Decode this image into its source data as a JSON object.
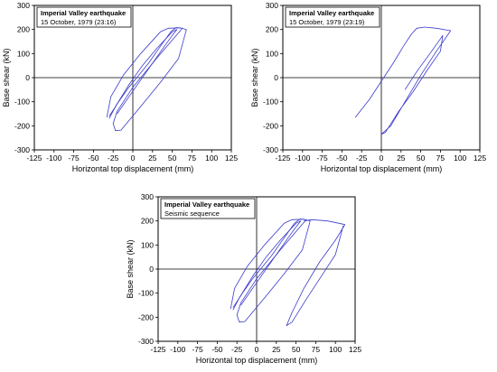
{
  "colors": {
    "curve": "#3a3acc",
    "axis": "#000000",
    "background": "#ffffff"
  },
  "chart_data": [
    {
      "type": "line",
      "annotation_title": "Imperial Valley earthquake",
      "annotation_subtitle": "15 October, 1979 (23:16)",
      "xlabel": "Horizontal top displacement (mm)",
      "ylabel": "Base shear (kN)",
      "xlim": [
        -125,
        125
      ],
      "ylim": [
        -300,
        300
      ],
      "xticks": [
        -125,
        -100,
        -75,
        -50,
        -25,
        0,
        25,
        50,
        75,
        100,
        125
      ],
      "yticks": [
        -300,
        -200,
        -100,
        0,
        100,
        200,
        300
      ],
      "series": [
        {
          "points": [
            [
              -30,
              -160
            ],
            [
              -18,
              -100
            ],
            [
              -5,
              -40
            ],
            [
              5,
              0
            ],
            [
              20,
              60
            ],
            [
              35,
              130
            ],
            [
              48,
              190
            ],
            [
              55,
              208
            ],
            [
              63,
              205
            ],
            [
              30,
              80
            ],
            [
              0,
              -40
            ],
            [
              -20,
              -140
            ],
            [
              -25,
              -190
            ],
            [
              -22,
              -220
            ],
            [
              -15,
              -218
            ],
            [
              10,
              -120
            ],
            [
              35,
              -20
            ],
            [
              58,
              80
            ],
            [
              68,
              200
            ],
            [
              60,
              207
            ],
            [
              45,
              205
            ],
            [
              35,
              190
            ],
            [
              10,
              100
            ],
            [
              -12,
              10
            ],
            [
              -28,
              -80
            ],
            [
              -33,
              -165
            ]
          ]
        },
        {
          "points": [
            [
              -20,
              -150
            ],
            [
              -5,
              -80
            ],
            [
              10,
              -10
            ],
            [
              25,
              60
            ],
            [
              40,
              130
            ],
            [
              50,
              175
            ],
            [
              56,
              200
            ],
            [
              50,
              190
            ],
            [
              30,
              120
            ],
            [
              12,
              50
            ],
            [
              -5,
              -30
            ],
            [
              -22,
              -120
            ],
            [
              -30,
              -170
            ]
          ]
        }
      ]
    },
    {
      "type": "line",
      "annotation_title": "Imperial Valley earthquake",
      "annotation_subtitle": "15 October, 1979 (23:19)",
      "xlabel": "Horizontal top displacement (mm)",
      "ylabel": "Base shear (kN)",
      "xlim": [
        -125,
        125
      ],
      "ylim": [
        -300,
        300
      ],
      "xticks": [
        -125,
        -100,
        -75,
        -50,
        -25,
        0,
        25,
        50,
        75,
        100,
        125
      ],
      "yticks": [
        -300,
        -200,
        -100,
        0,
        100,
        200,
        300
      ],
      "series": [
        {
          "points": [
            [
              -33,
              -165
            ],
            [
              -15,
              -90
            ],
            [
              0,
              -15
            ],
            [
              15,
              60
            ],
            [
              28,
              130
            ],
            [
              38,
              180
            ],
            [
              45,
              205
            ],
            [
              55,
              210
            ],
            [
              70,
              205
            ],
            [
              88,
              195
            ],
            [
              70,
              110
            ],
            [
              50,
              10
            ],
            [
              30,
              -100
            ],
            [
              12,
              -200
            ],
            [
              0,
              -235
            ],
            [
              5,
              -228
            ],
            [
              22,
              -140
            ],
            [
              40,
              -60
            ],
            [
              58,
              30
            ],
            [
              75,
              110
            ],
            [
              78,
              175
            ],
            [
              65,
              115
            ],
            [
              45,
              25
            ],
            [
              30,
              -50
            ]
          ]
        }
      ]
    },
    {
      "type": "line",
      "annotation_title": "Imperial Valley earthquake",
      "annotation_subtitle": "Seismic sequence",
      "xlabel": "Horizontal top displacement (mm)",
      "ylabel": "Base shear (kN)",
      "xlim": [
        -125,
        125
      ],
      "ylim": [
        -300,
        300
      ],
      "xticks": [
        -125,
        -100,
        -75,
        -50,
        -25,
        0,
        25,
        50,
        75,
        100,
        125
      ],
      "yticks": [
        -300,
        -200,
        -100,
        0,
        100,
        200,
        300
      ],
      "series": [
        {
          "points": [
            [
              -30,
              -160
            ],
            [
              -18,
              -100
            ],
            [
              -5,
              -40
            ],
            [
              5,
              0
            ],
            [
              20,
              60
            ],
            [
              35,
              130
            ],
            [
              48,
              190
            ],
            [
              55,
              208
            ],
            [
              63,
              205
            ],
            [
              30,
              80
            ],
            [
              0,
              -40
            ],
            [
              -20,
              -140
            ],
            [
              -25,
              -190
            ],
            [
              -22,
              -220
            ],
            [
              -15,
              -218
            ],
            [
              10,
              -120
            ],
            [
              35,
              -20
            ],
            [
              58,
              80
            ],
            [
              68,
              200
            ],
            [
              60,
              207
            ],
            [
              45,
              205
            ],
            [
              35,
              190
            ],
            [
              10,
              100
            ],
            [
              -12,
              10
            ],
            [
              -28,
              -80
            ],
            [
              -33,
              -165
            ]
          ]
        },
        {
          "points": [
            [
              -20,
              -150
            ],
            [
              -5,
              -80
            ],
            [
              10,
              -10
            ],
            [
              25,
              60
            ],
            [
              40,
              130
            ],
            [
              50,
              175
            ],
            [
              56,
              200
            ],
            [
              50,
              190
            ],
            [
              30,
              120
            ],
            [
              12,
              50
            ],
            [
              -5,
              -30
            ],
            [
              -22,
              -120
            ],
            [
              -30,
              -170
            ]
          ]
        },
        {
          "points": [
            [
              60,
              200
            ],
            [
              70,
              205
            ],
            [
              90,
              200
            ],
            [
              112,
              185
            ],
            [
              100,
              120
            ],
            [
              80,
              30
            ],
            [
              60,
              -80
            ],
            [
              45,
              -180
            ],
            [
              38,
              -235
            ],
            [
              45,
              -220
            ],
            [
              62,
              -130
            ],
            [
              80,
              -40
            ],
            [
              100,
              60
            ],
            [
              110,
              180
            ]
          ]
        }
      ]
    }
  ]
}
